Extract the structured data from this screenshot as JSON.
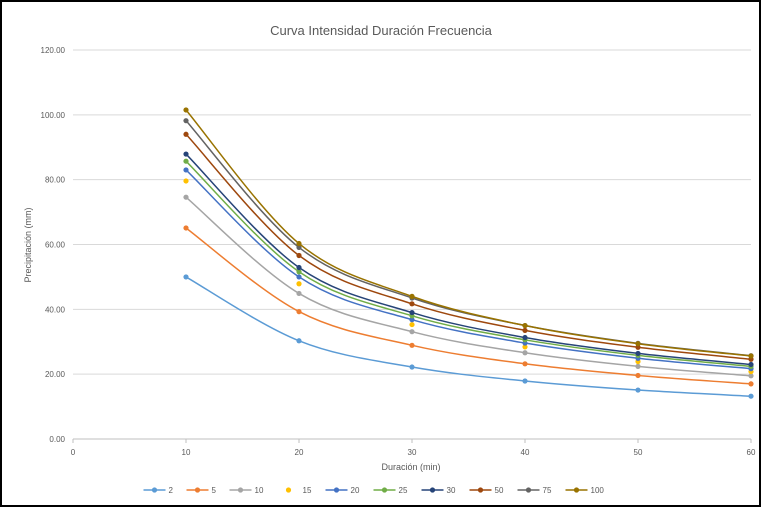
{
  "chart_data": {
    "type": "line",
    "title": "Curva Intensidad Duración Frecuencia",
    "xlabel": "Duración (min)",
    "ylabel": "Precipitación (mm)",
    "xlim": [
      0,
      60
    ],
    "ylim": [
      0,
      120
    ],
    "x_ticks": [
      "0",
      "10",
      "20",
      "30",
      "40",
      "50",
      "60"
    ],
    "y_ticks": [
      "0.00",
      "20.00",
      "40.00",
      "60.00",
      "80.00",
      "100.00",
      "120.00"
    ],
    "grid": "horizontal",
    "legend_position": "bottom",
    "x": [
      10,
      20,
      30,
      40,
      50,
      60
    ],
    "series": [
      {
        "name": "2",
        "color": "#5B9BD5",
        "values": [
          50.0,
          30.3,
          22.2,
          17.9,
          15.1,
          13.2
        ]
      },
      {
        "name": "5",
        "color": "#ED7D31",
        "values": [
          65.1,
          39.3,
          28.9,
          23.2,
          19.6,
          17.0
        ]
      },
      {
        "name": "10",
        "color": "#A5A5A5",
        "values": [
          74.6,
          44.9,
          33.1,
          26.6,
          22.4,
          19.5
        ]
      },
      {
        "name": "15",
        "color": "#FFC000",
        "values": [
          79.6,
          47.9,
          35.3,
          28.4,
          23.9,
          20.8
        ],
        "markers_only": true
      },
      {
        "name": "20",
        "color": "#4472C4",
        "values": [
          83.0,
          50.0,
          36.8,
          29.6,
          24.9,
          21.7
        ]
      },
      {
        "name": "25",
        "color": "#70AD47",
        "values": [
          85.7,
          51.6,
          38.0,
          30.6,
          25.8,
          22.4
        ]
      },
      {
        "name": "30",
        "color": "#264478",
        "values": [
          87.9,
          52.9,
          39.0,
          31.3,
          26.4,
          23.0
        ]
      },
      {
        "name": "50",
        "color": "#9E480E",
        "values": [
          94.0,
          56.6,
          41.7,
          33.5,
          28.3,
          24.6
        ]
      },
      {
        "name": "75",
        "color": "#636363",
        "values": [
          98.2,
          59.1,
          43.5,
          35.0,
          29.5,
          25.7
        ]
      },
      {
        "name": "100",
        "color": "#997300",
        "values": [
          101.5,
          60.3,
          44.0,
          35.0,
          29.4,
          25.6
        ]
      }
    ]
  }
}
